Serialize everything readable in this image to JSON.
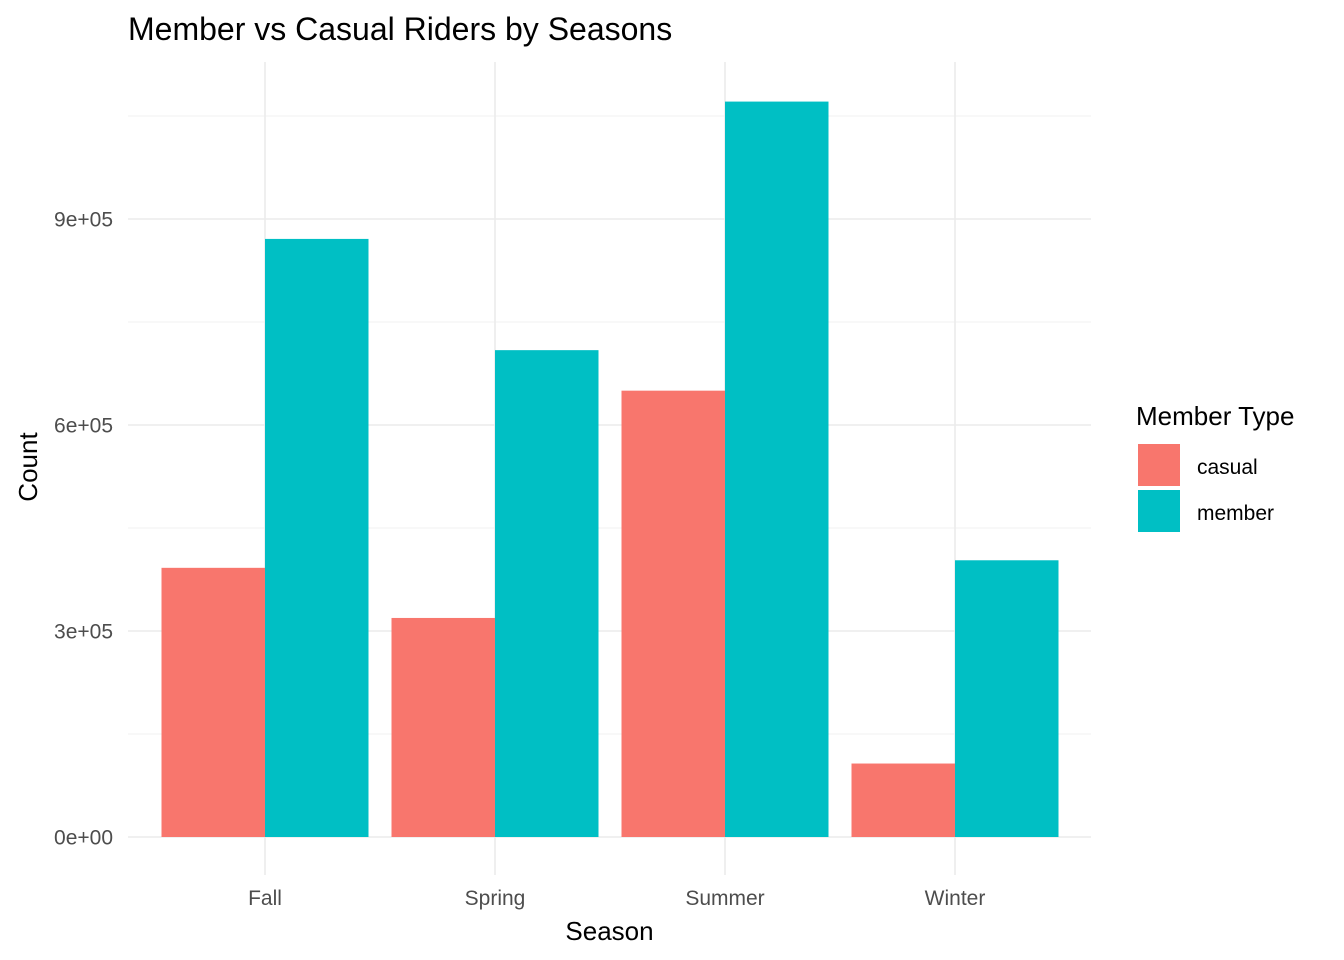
{
  "chart_data": {
    "type": "bar",
    "title": "Member vs Casual Riders by Seasons",
    "xlabel": "Season",
    "ylabel": "Count",
    "categories": [
      "Fall",
      "Spring",
      "Summer",
      "Winter"
    ],
    "series": [
      {
        "name": "casual",
        "color": "#F8766D",
        "values": [
          392000,
          319000,
          650000,
          107000
        ]
      },
      {
        "name": "member",
        "color": "#00BFC4",
        "values": [
          871000,
          709000,
          1071000,
          403000
        ]
      }
    ],
    "ylim": [
      0,
      1130000
    ],
    "yticks": [
      0,
      300000,
      600000,
      900000
    ],
    "ytick_labels": [
      "0e+00",
      "3e+05",
      "6e+05",
      "9e+05"
    ],
    "y_minor_ticks": [
      150000,
      450000,
      750000,
      1050000
    ],
    "grid": true,
    "legend": {
      "title": "Member Type",
      "placement": "right"
    }
  }
}
